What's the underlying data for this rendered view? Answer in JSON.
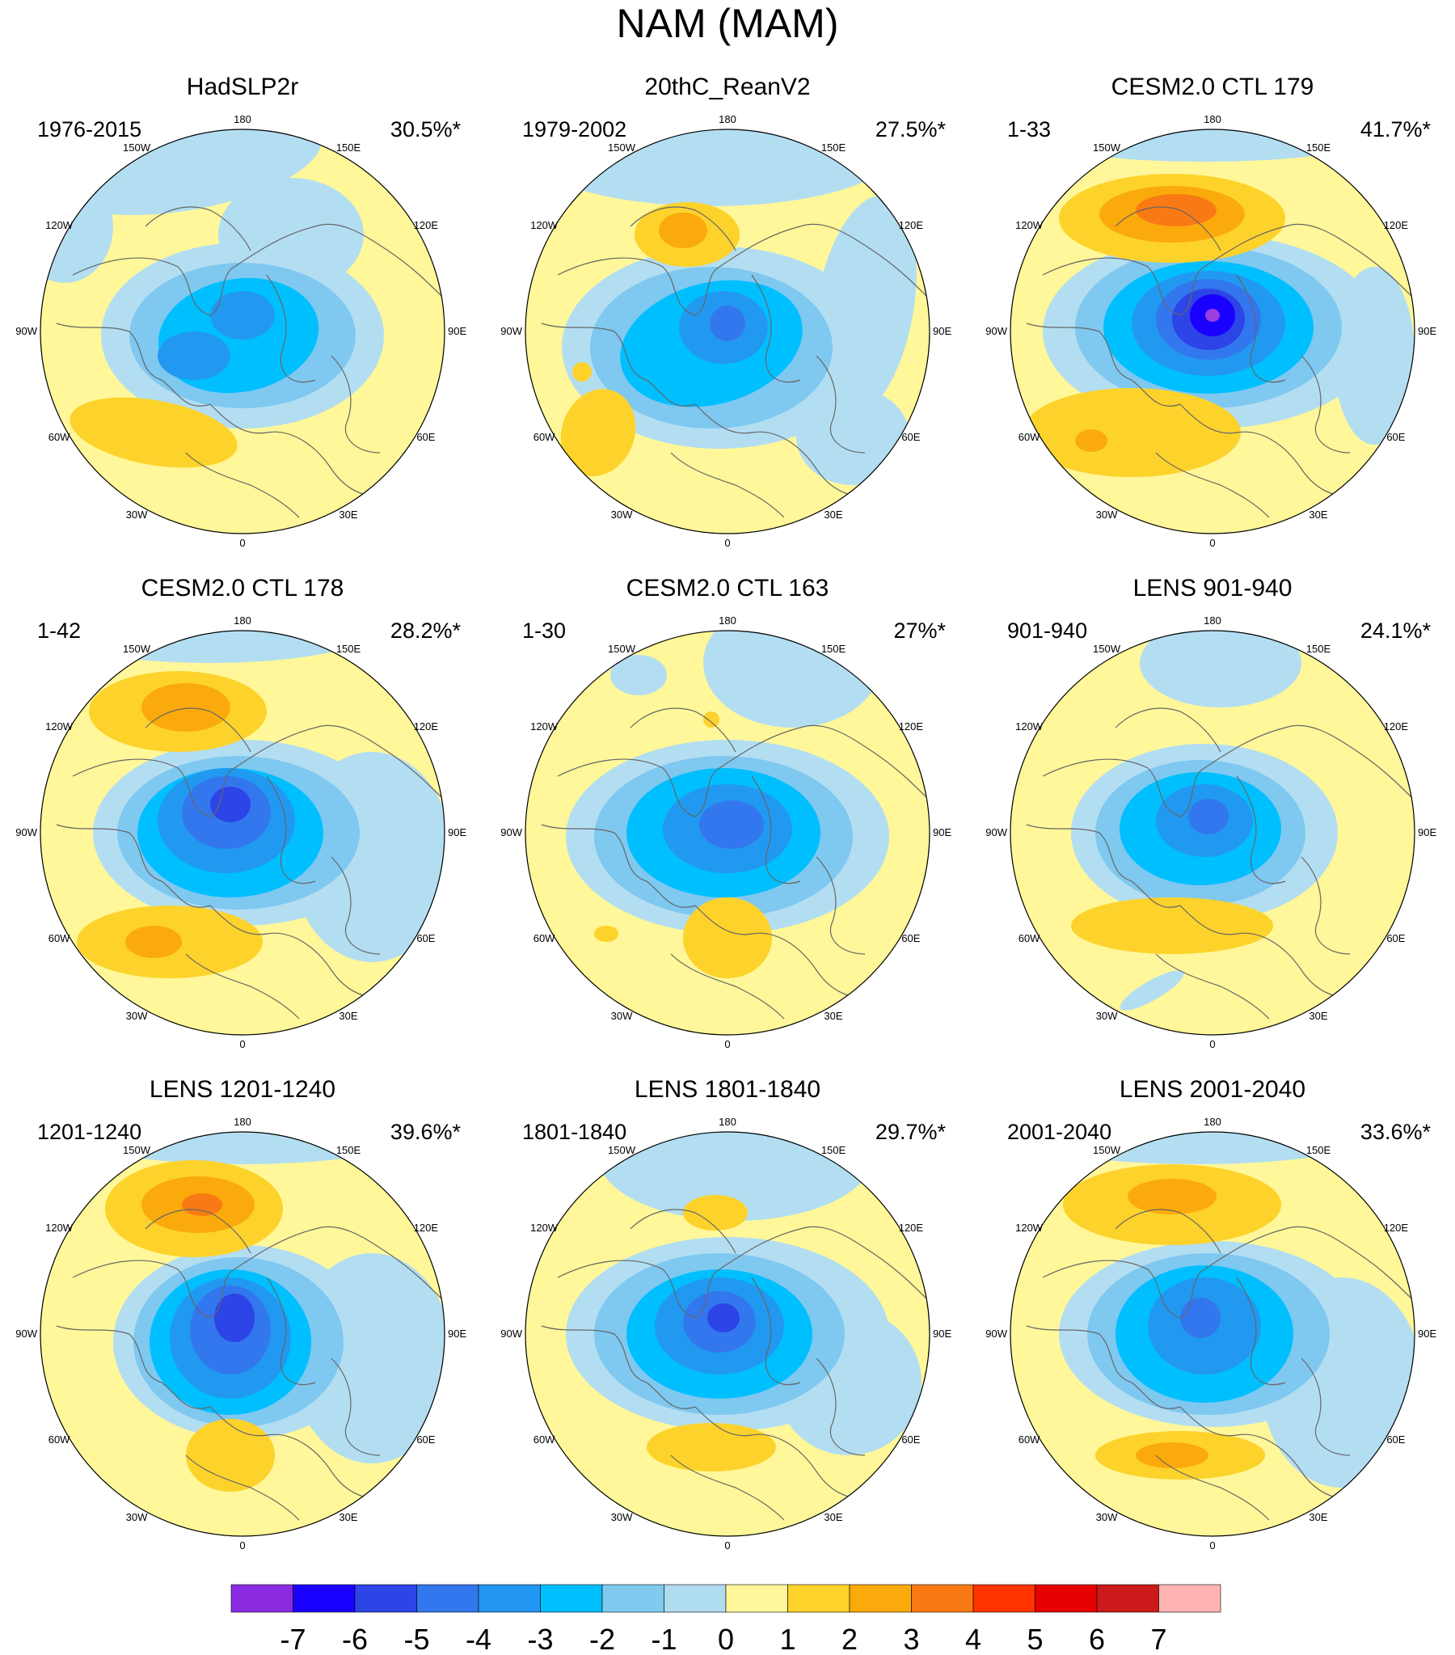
{
  "title": "NAM (MAM)",
  "panels": [
    {
      "title": "HadSLP2r",
      "period": "1976-2015",
      "variance": "30.5%*"
    },
    {
      "title": "20thC_ReanV2",
      "period": "1979-2002",
      "variance": "27.5%*"
    },
    {
      "title": "CESM2.0 CTL 179",
      "period": "1-33",
      "variance": "41.7%*"
    },
    {
      "title": "CESM2.0 CTL 178",
      "period": "1-42",
      "variance": "28.2%*"
    },
    {
      "title": "CESM2.0 CTL 163",
      "period": "1-30",
      "variance": "27%*"
    },
    {
      "title": "LENS 901-940",
      "period": "901-940",
      "variance": "24.1%*"
    },
    {
      "title": "LENS 1201-1240",
      "period": "1201-1240",
      "variance": "39.6%*"
    },
    {
      "title": "LENS 1801-1840",
      "period": "1801-1840",
      "variance": "29.7%*"
    },
    {
      "title": "LENS 2001-2040",
      "period": "2001-2040",
      "variance": "33.6%*"
    }
  ],
  "longitude_labels": [
    "180",
    "150E",
    "120E",
    "90E",
    "60E",
    "30E",
    "0",
    "30W",
    "60W",
    "90W",
    "120W",
    "150W"
  ],
  "colorbar": {
    "labels": [
      "-7",
      "-6",
      "-5",
      "-4",
      "-3",
      "-2",
      "-1",
      "0",
      "1",
      "2",
      "3",
      "4",
      "5",
      "6",
      "7"
    ],
    "colors": [
      "#8a2be2",
      "#1a00ff",
      "#2d44e6",
      "#3377ee",
      "#2196f3",
      "#00bfff",
      "#7ecbef",
      "#b0dcf0",
      "#fff799",
      "#fdd22b",
      "#fbaa0b",
      "#f97a15",
      "#ff3300",
      "#e60000",
      "#cc1a1a",
      "#ffb3b3"
    ]
  },
  "palette": {
    "neg1": "#b3def2",
    "neg2": "#7fc8f0",
    "neg3": "#00bfff",
    "neg4": "#2199f0",
    "neg5": "#3377ee",
    "neg6": "#2d44e6",
    "neg7": "#1a00ff",
    "neg8": "#9b3fe0",
    "pos1": "#fff799",
    "pos2": "#fdd22b",
    "pos3": "#fbaa0b",
    "pos4": "#f97a15",
    "coast": "#666666"
  }
}
